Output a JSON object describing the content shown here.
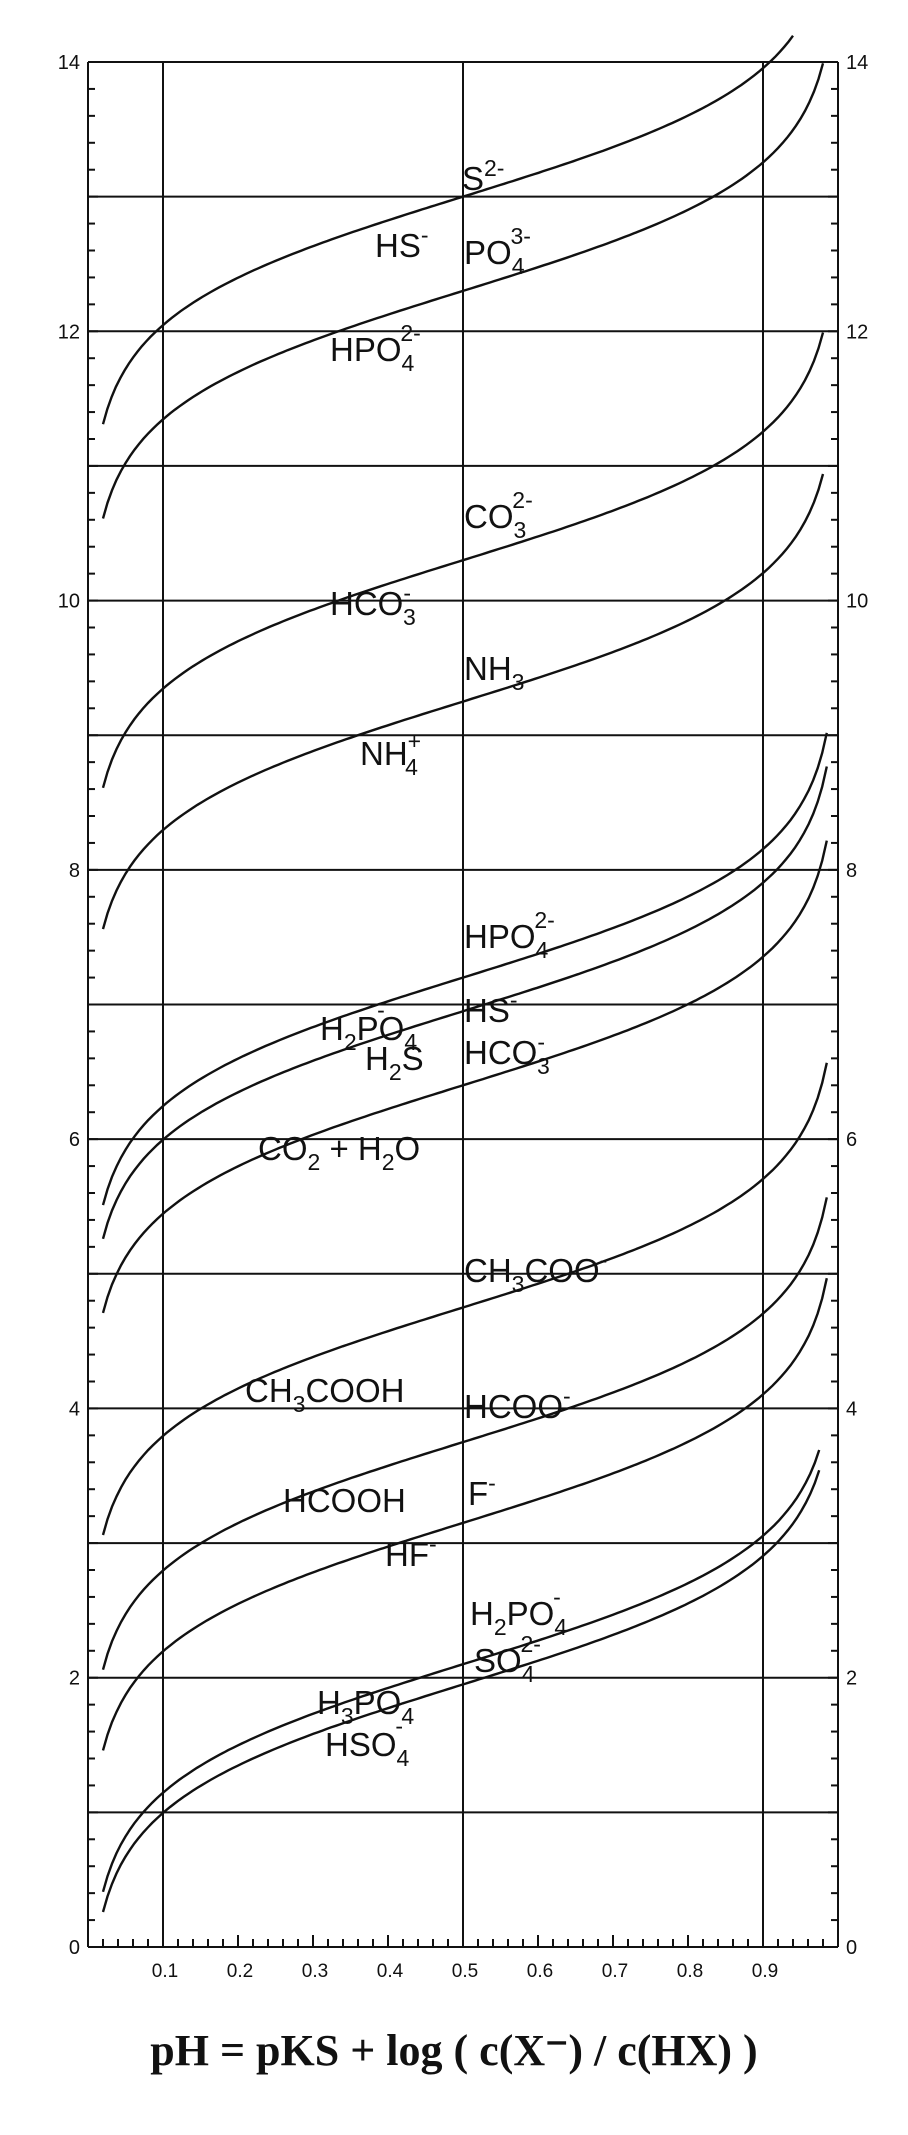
{
  "chart_data": {
    "type": "line",
    "xlim": [
      0,
      1
    ],
    "ylim": [
      0,
      14
    ],
    "x_ticks": [
      "0.1",
      "0.2",
      "0.3",
      "0.4",
      "0.5",
      "0.6",
      "0.7",
      "0.8",
      "0.9"
    ],
    "y_ticks_left": [
      "0",
      "2",
      "4",
      "6",
      "8",
      "10",
      "12",
      "14"
    ],
    "y_ticks_right": [
      "0",
      "2",
      "4",
      "6",
      "8",
      "10",
      "12",
      "14"
    ],
    "grid": true,
    "formula": "pH = pKS + log ( c(X⁻) / c(HX) )",
    "series": [
      {
        "pKs": 13.0,
        "x_start": 0.02,
        "x_end": 0.94,
        "acid": "HS⁻",
        "base": "S²⁻"
      },
      {
        "pKs": 12.3,
        "x_start": 0.02,
        "x_end": 0.98,
        "acid": "HPO₄²⁻",
        "base": "PO₄³⁻"
      },
      {
        "pKs": 10.3,
        "x_start": 0.02,
        "x_end": 0.98,
        "acid": "HCO₃⁻",
        "base": "CO₃²⁻"
      },
      {
        "pKs": 9.25,
        "x_start": 0.02,
        "x_end": 0.98,
        "acid": "NH₄⁺",
        "base": "NH₃"
      },
      {
        "pKs": 7.2,
        "x_start": 0.02,
        "x_end": 0.985,
        "acid": "H₂PO₄⁻",
        "base": "HPO₄²⁻"
      },
      {
        "pKs": 6.95,
        "x_start": 0.02,
        "x_end": 0.985,
        "acid": "H₂S",
        "base": "HS⁻"
      },
      {
        "pKs": 6.4,
        "x_start": 0.02,
        "x_end": 0.985,
        "acid": "CO₂ + H₂O",
        "base": "HCO₃⁻"
      },
      {
        "pKs": 4.75,
        "x_start": 0.02,
        "x_end": 0.985,
        "acid": "CH₃COOH",
        "base": "CH₃COO⁻"
      },
      {
        "pKs": 3.75,
        "x_start": 0.02,
        "x_end": 0.985,
        "acid": "HCOOH",
        "base": "HCOO⁻"
      },
      {
        "pKs": 3.15,
        "x_start": 0.02,
        "x_end": 0.985,
        "acid": "HF",
        "base": "F⁻"
      },
      {
        "pKs": 2.1,
        "x_start": 0.02,
        "x_end": 0.975,
        "acid": "H₃PO₄",
        "base": "H₂PO₄⁻"
      },
      {
        "pKs": 1.95,
        "x_start": 0.02,
        "x_end": 0.975,
        "acid": "HSO₄⁻",
        "base": "SO₄²⁻"
      }
    ]
  }
}
